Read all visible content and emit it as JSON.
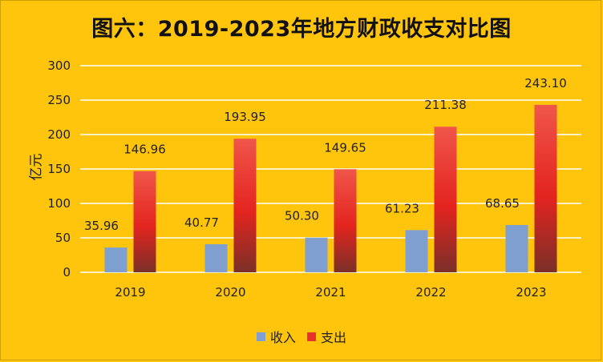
{
  "chart_data": {
    "type": "bar",
    "title": "图六：2019-2023年地方财政收支对比图",
    "ylabel": "亿元",
    "xlabel": "",
    "categories": [
      "2019",
      "2020",
      "2021",
      "2022",
      "2023"
    ],
    "series": [
      {
        "name": "收入",
        "values": [
          35.96,
          40.77,
          50.3,
          61.23,
          68.65
        ],
        "value_labels": [
          "35.96",
          "40.77",
          "50.30",
          "61.23",
          "68.65"
        ],
        "color": "#7F9FD1"
      },
      {
        "name": "支出",
        "values": [
          146.96,
          193.95,
          149.65,
          211.38,
          243.1
        ],
        "value_labels": [
          "146.96",
          "193.95",
          "149.65",
          "211.38",
          "243.10"
        ],
        "color": "#E8312C"
      }
    ],
    "ylim": [
      0,
      300
    ],
    "yticks": [
      "0",
      "50",
      "100",
      "150",
      "200",
      "250",
      "300"
    ],
    "grid": true,
    "legend_position": "bottom",
    "background": "#FFC40C"
  }
}
